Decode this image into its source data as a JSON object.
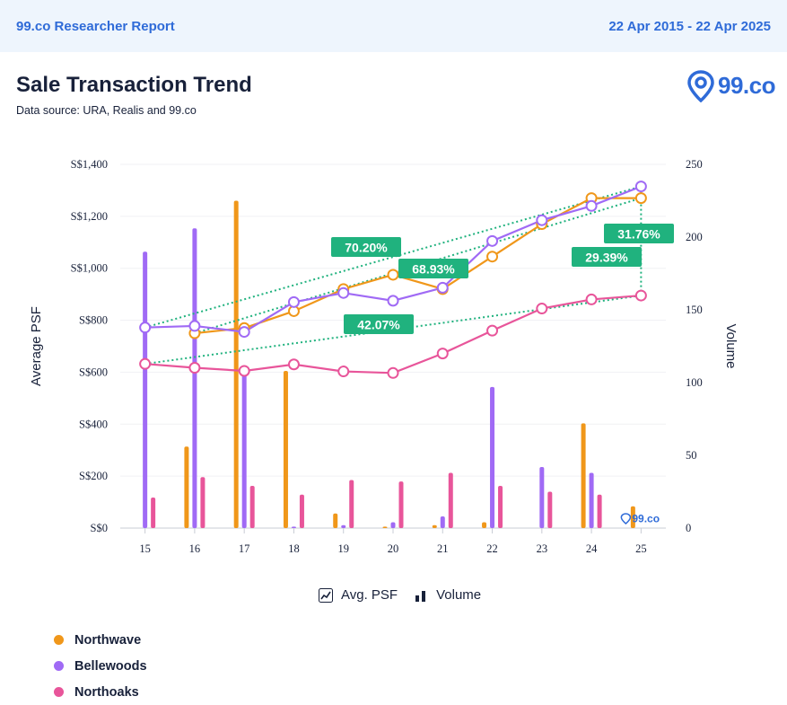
{
  "header": {
    "report_title": "99.co Researcher Report",
    "date_range": "22 Apr 2015 - 22 Apr 2025"
  },
  "title": "Sale Transaction Trend",
  "data_source": "Data source: URA, Realis and 99.co",
  "logo_text": "99.co",
  "watermark_text": "99.co",
  "legend_types": {
    "psf_label": "Avg. PSF",
    "volume_label": "Volume"
  },
  "chart_data": {
    "type": "line",
    "categories": [
      "15",
      "16",
      "17",
      "18",
      "19",
      "20",
      "21",
      "22",
      "23",
      "24",
      "25"
    ],
    "ylabel": "Average PSF",
    "y2label": "Volume",
    "ylim": [
      0,
      1400
    ],
    "y2lim": [
      0,
      250
    ],
    "yticks": [
      "S$0",
      "S$200",
      "S$400",
      "S$600",
      "S$800",
      "S$1,000",
      "S$1,200",
      "S$1,400"
    ],
    "y2ticks": [
      "0",
      "50",
      "100",
      "150",
      "200",
      "250"
    ],
    "grid": true,
    "series": [
      {
        "name": "Northwave",
        "color": "#f0971a",
        "psf": [
          null,
          750,
          770,
          835,
          920,
          975,
          920,
          1045,
          1170,
          1270,
          1270
        ],
        "volume": [
          0,
          56,
          225,
          108,
          10,
          1,
          2,
          4,
          0,
          72,
          15
        ]
      },
      {
        "name": "Bellewoods",
        "color": "#a06af5",
        "psf": [
          772,
          778,
          755,
          870,
          905,
          875,
          925,
          1105,
          1185,
          1240,
          1315
        ],
        "volume": [
          190,
          206,
          110,
          1,
          2,
          4,
          8,
          97,
          42,
          38,
          0
        ]
      },
      {
        "name": "Northoaks",
        "color": "#e8559a",
        "psf": [
          632,
          617,
          605,
          630,
          603,
          597,
          672,
          760,
          845,
          880,
          895
        ],
        "volume": [
          21,
          35,
          29,
          23,
          33,
          32,
          38,
          29,
          25,
          23,
          0
        ]
      }
    ],
    "annotations": [
      {
        "text": "70.20%",
        "series": "Northwave"
      },
      {
        "text": "68.93%",
        "series": "Bellewoods"
      },
      {
        "text": "42.07%",
        "series": "Northoaks"
      },
      {
        "text": "31.76%",
        "series": "Bellewoods"
      },
      {
        "text": "29.39%",
        "series": "Northoaks"
      }
    ]
  },
  "series_legend": [
    {
      "name": "Northwave",
      "color": "#f0971a"
    },
    {
      "name": "Bellewoods",
      "color": "#a06af5"
    },
    {
      "name": "Northoaks",
      "color": "#e8559a"
    }
  ]
}
